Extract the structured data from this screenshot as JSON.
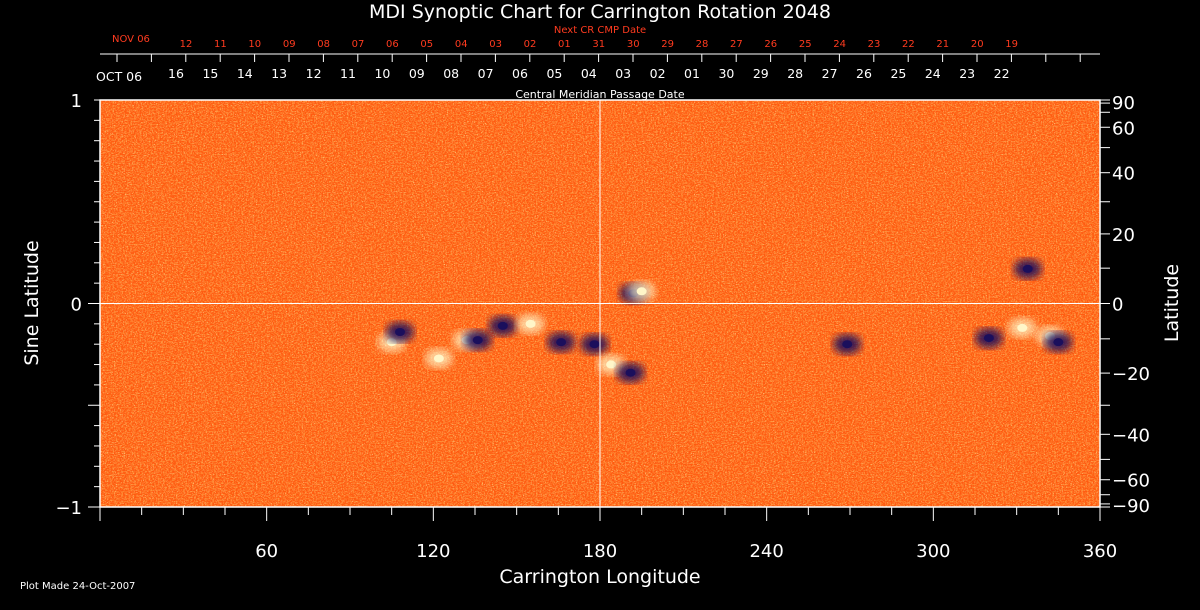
{
  "chart_data": {
    "type": "heatmap",
    "title": "MDI Synoptic Chart for Carrington Rotation 2048",
    "xlabel": "Carrington Longitude",
    "ylabel_left": "Sine Latitude",
    "ylabel_right": "Latitude",
    "xlim": [
      0,
      360
    ],
    "ylim": [
      -1,
      1
    ],
    "x_ticks": [
      "60",
      "120",
      "180",
      "240",
      "300",
      "360"
    ],
    "x_tick_values": [
      60,
      120,
      180,
      240,
      300,
      360
    ],
    "left_ticks": [
      "1",
      "0",
      "−1"
    ],
    "left_tick_values": [
      1,
      0,
      -1
    ],
    "right_ticks": [
      "90",
      "60",
      "40",
      "20",
      "0",
      "−20",
      "−40",
      "−60",
      "−90"
    ],
    "right_tick_values": [
      90,
      60,
      40,
      20,
      0,
      -20,
      -40,
      -60,
      -90
    ],
    "next_cr_label": "Next CR CMP Date",
    "next_cr_month_label": "NOV 06",
    "next_cr_dates": [
      "12",
      "11",
      "10",
      "09",
      "08",
      "07",
      "06",
      "05",
      "04",
      "03",
      "02",
      "01",
      "31",
      "30",
      "29",
      "28",
      "27",
      "26",
      "25",
      "24",
      "23",
      "22",
      "21",
      "20",
      "19"
    ],
    "cmp_label": "Central Meridian Passage Date",
    "cmp_month_label": "OCT 06",
    "cmp_dates": [
      "16",
      "15",
      "14",
      "13",
      "12",
      "11",
      "10",
      "09",
      "08",
      "07",
      "06",
      "05",
      "04",
      "03",
      "02",
      "01",
      "30",
      "29",
      "28",
      "27",
      "26",
      "25",
      "24",
      "23",
      "22"
    ],
    "grid_lines": {
      "longitude": 180,
      "sine_latitude": 0
    },
    "color_scheme": {
      "background_field": "#ff4a0a",
      "positive": "#fff6c8",
      "negative": "#1b0f5c",
      "frame": "#ffffff",
      "axis_text": "#ffffff",
      "top_scale_text": "#ff3b1f"
    },
    "active_regions": [
      {
        "lon": 105,
        "sinlat": -0.19,
        "polarity": "positive"
      },
      {
        "lon": 108,
        "sinlat": -0.14,
        "polarity": "negative"
      },
      {
        "lon": 122,
        "sinlat": -0.27,
        "polarity": "positive"
      },
      {
        "lon": 132,
        "sinlat": -0.18,
        "polarity": "positive"
      },
      {
        "lon": 136,
        "sinlat": -0.18,
        "polarity": "negative"
      },
      {
        "lon": 145,
        "sinlat": -0.11,
        "polarity": "negative"
      },
      {
        "lon": 155,
        "sinlat": -0.1,
        "polarity": "positive"
      },
      {
        "lon": 166,
        "sinlat": -0.19,
        "polarity": "negative"
      },
      {
        "lon": 178,
        "sinlat": -0.2,
        "polarity": "negative"
      },
      {
        "lon": 184,
        "sinlat": -0.3,
        "polarity": "positive"
      },
      {
        "lon": 191,
        "sinlat": -0.34,
        "polarity": "negative"
      },
      {
        "lon": 192,
        "sinlat": 0.05,
        "polarity": "negative"
      },
      {
        "lon": 195,
        "sinlat": 0.06,
        "polarity": "positive"
      },
      {
        "lon": 269,
        "sinlat": -0.2,
        "polarity": "negative"
      },
      {
        "lon": 320,
        "sinlat": -0.17,
        "polarity": "negative"
      },
      {
        "lon": 332,
        "sinlat": -0.12,
        "polarity": "positive"
      },
      {
        "lon": 342,
        "sinlat": -0.16,
        "polarity": "positive"
      },
      {
        "lon": 345,
        "sinlat": -0.19,
        "polarity": "negative"
      },
      {
        "lon": 334,
        "sinlat": 0.17,
        "polarity": "negative"
      }
    ]
  },
  "footer": {
    "plot_made": "Plot Made 24-Oct-2007"
  }
}
